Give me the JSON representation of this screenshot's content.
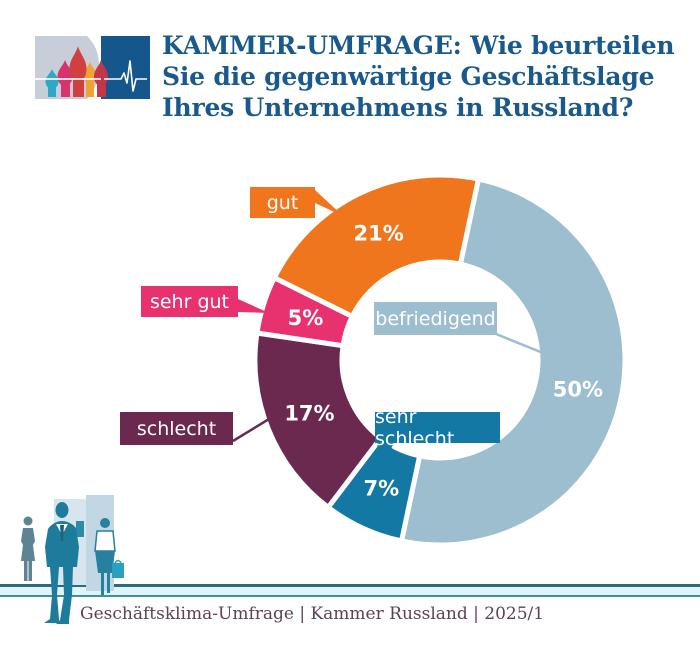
{
  "header": {
    "logo_icon": "st-basils-cathedral-domes-with-pulse-line",
    "title_lines": [
      "KAMMER-UMFRAGE: Wie beurteilen",
      "Sie die gegenwärtige Geschäftslage",
      "Ihres Unternehmens in Russland?"
    ],
    "title_color": "#19598C"
  },
  "chart_data": {
    "type": "pie",
    "donut": true,
    "title": "Wie beurteilen Sie die gegenwärtige Geschäftslage Ihres Unternehmens in Russland?",
    "unit": "%",
    "direction": "clockwise",
    "start_angle_deg_from_top": 12,
    "legend_position": "callout-labels",
    "slice_separator_color": "#FFFFFF",
    "value_label_color": "#FFFFFF",
    "slices": [
      {
        "label": "befriedigend",
        "value": 50,
        "display": "50%",
        "color": "#9DBECE"
      },
      {
        "label": "sehr schlecht",
        "value": 7,
        "display": "7%",
        "color": "#1478A4"
      },
      {
        "label": "schlecht",
        "value": 17,
        "display": "17%",
        "color": "#6C2950"
      },
      {
        "label": "sehr gut",
        "value": 5,
        "display": "5%",
        "color": "#E8316F"
      },
      {
        "label": "gut",
        "value": 21,
        "display": "21%",
        "color": "#F0761E"
      }
    ]
  },
  "footer": {
    "source_line": "Geschäftsklima-Umfrage | Kammer Russland | 2025/1",
    "text_color": "#5C4255",
    "people_icon": "business-people-silhouettes"
  }
}
